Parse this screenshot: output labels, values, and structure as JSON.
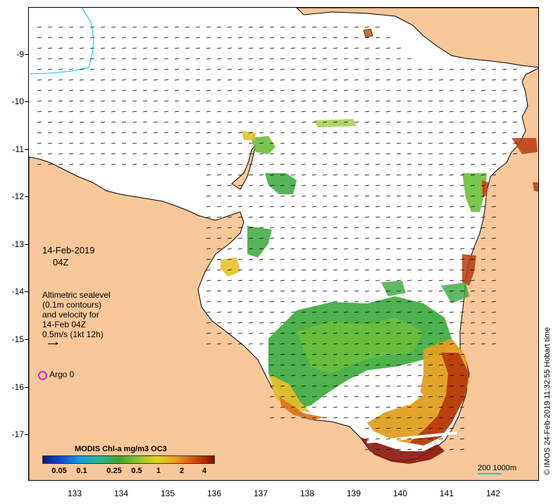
{
  "map": {
    "y_axis_labels": [
      "-9",
      "-10",
      "-11",
      "-12",
      "-13",
      "-14",
      "-15",
      "-16",
      "-17"
    ],
    "x_axis_labels": [
      "133",
      "134",
      "135",
      "136",
      "137",
      "138",
      "139",
      "140",
      "141",
      "142"
    ],
    "colors": {
      "land": "#f8c89a",
      "ocean": "#ffffff",
      "coast": "#000000",
      "cyan_line": "#20d8e8"
    }
  },
  "annotation": {
    "date": "14-Feb-2019",
    "time": "04Z"
  },
  "legend": {
    "line1": "Altimetric sealevel",
    "line2": "(0.1m contours)",
    "line3": "and velocity for",
    "line4": "14-Feb 04Z",
    "scale_label": "0.5m/s (1kt 12h)",
    "argo_label": "Argo 0",
    "argo_color": "#e020d0"
  },
  "colorbar": {
    "title": "MODIS Chl-a mg/m3 OC3",
    "ticks": [
      "0.05",
      "0.1",
      "0.25",
      "0.5",
      "1",
      "2",
      "4"
    ]
  },
  "scale": {
    "label": "200  1000m",
    "color": "#20c8c8"
  },
  "credit": "© IMOS 24-Feb-2019 11:32:55 Hobart time"
}
